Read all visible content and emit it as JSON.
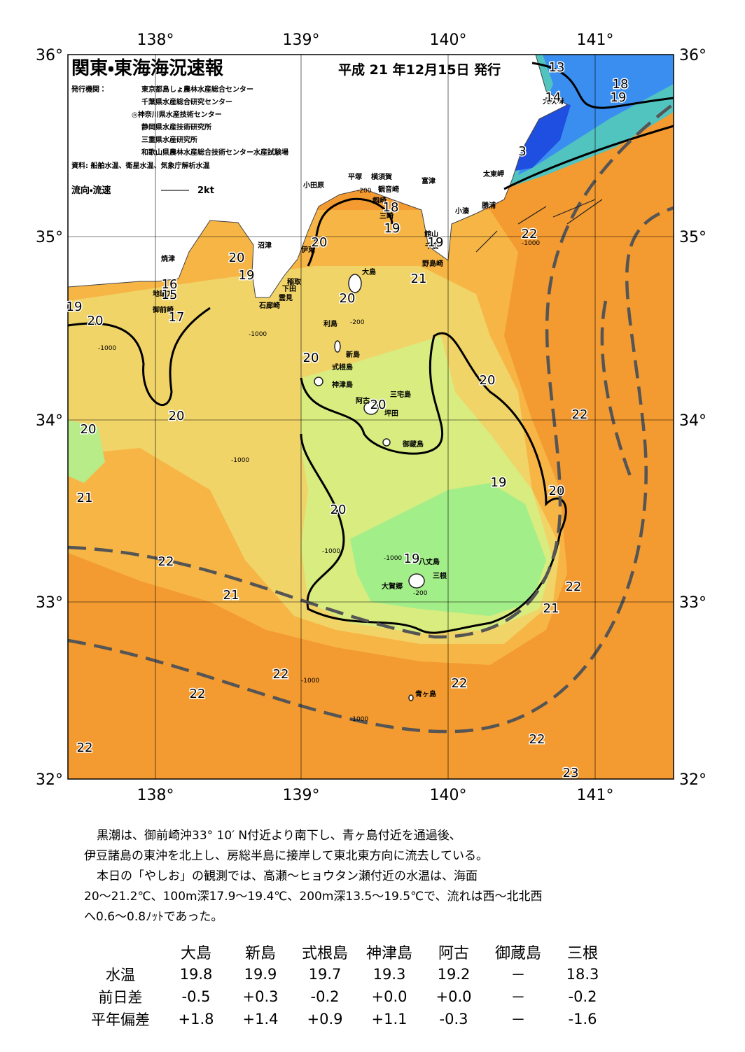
{
  "header": {
    "title": "関東・東海海況速報",
    "date": "平成 21 年12月15日 発行"
  },
  "issuers": {
    "label": "発行機関：",
    "list": [
      "東京都島しょ農林水産総合センター",
      "千葉県水産総合研究センター",
      "◎神奈川県水産技術センター",
      "静岡県水産技術研究所",
      "三重県水産研究所",
      "和歌山県農林水産総合技術センター水産試験場"
    ]
  },
  "source": "資料: 船舶水温、衛星水温、気象庁解析水温",
  "legend": {
    "label": "流向・流速",
    "unit": "2kt"
  },
  "axes": {
    "lon": [
      "138°",
      "139°",
      "140°",
      "141°"
    ],
    "lat": [
      "36°",
      "35°",
      "34°",
      "33°",
      "32°"
    ]
  },
  "places": [
    "犬吠埼",
    "太東岬",
    "勝浦",
    "小湊",
    "富津",
    "横須賀",
    "観音崎",
    "平塚",
    "小田原",
    "剱崎",
    "三崎",
    "館山",
    "千倉",
    "野島崎",
    "大島",
    "沼津",
    "伊東",
    "稲取",
    "下田",
    "雲見",
    "石廊崎",
    "焼津",
    "地頭方",
    "御前崎",
    "利島",
    "新島",
    "式根島",
    "神津島",
    "阿古",
    "三宅島",
    "坪田",
    "御蔵島",
    "八丈島",
    "三根",
    "大賀郷",
    "青ヶ島"
  ],
  "isotherms": [
    13,
    18,
    14,
    19,
    3,
    18,
    19,
    22,
    19,
    20,
    20,
    19,
    21,
    16,
    15,
    19,
    20,
    20,
    17,
    20,
    20,
    20,
    22,
    20,
    20,
    21,
    19,
    20,
    20,
    19,
    22,
    22,
    21,
    21,
    22,
    22,
    22,
    22,
    22,
    23
  ],
  "depths": [
    "-200",
    "-1000"
  ],
  "summary": [
    "黒潮は、御前崎沖33° 10′ N付近より南下し、青ヶ島付近を通過後、",
    "伊豆諸島の東沖を北上し、房総半島に接岸して東北東方向に流去している。",
    "本日の「やしお」の観測では、高瀬～ヒョウタン瀬付近の水温は、海面",
    "20～21.2℃、100m深17.9～19.4℃、200m深13.5～19.5℃で、流れは西～北北西",
    "へ0.6～0.8ﾉｯﾄであった。"
  ],
  "table": {
    "columns": [
      "大島",
      "新島",
      "式根島",
      "神津島",
      "阿古",
      "御蔵島",
      "三根"
    ],
    "rows": [
      [
        "水温",
        "19.8",
        "19.9",
        "19.7",
        "19.3",
        "19.2",
        "－",
        "18.3"
      ],
      [
        "前日差",
        "-0.5",
        "+0.3",
        "-0.2",
        "+0.0",
        "+0.0",
        "－",
        "-0.2"
      ],
      [
        "平年偏差",
        "+1.8",
        "+1.4",
        "+0.9",
        "+1.1",
        "-0.3",
        "－",
        "-1.6"
      ]
    ]
  }
}
